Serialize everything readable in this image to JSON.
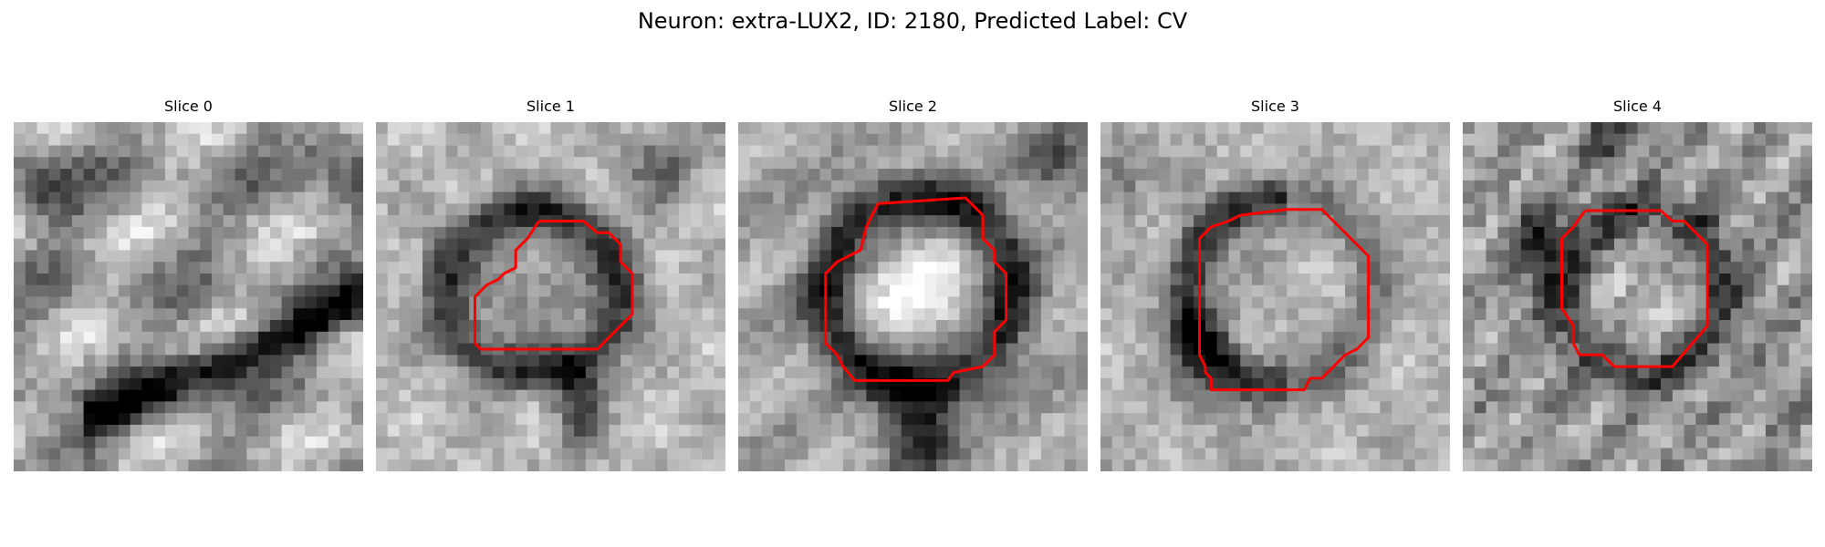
{
  "figure": {
    "title": "Neuron: extra-LUX2, ID: 2180, Predicted Label: CV",
    "contour_color": "#ff0000",
    "colormap": "gray",
    "slices": [
      {
        "title": "Slice 0",
        "has_contour": false
      },
      {
        "title": "Slice 1",
        "has_contour": true
      },
      {
        "title": "Slice 2",
        "has_contour": true
      },
      {
        "title": "Slice 3",
        "has_contour": true
      },
      {
        "title": "Slice 4",
        "has_contour": true
      }
    ]
  }
}
